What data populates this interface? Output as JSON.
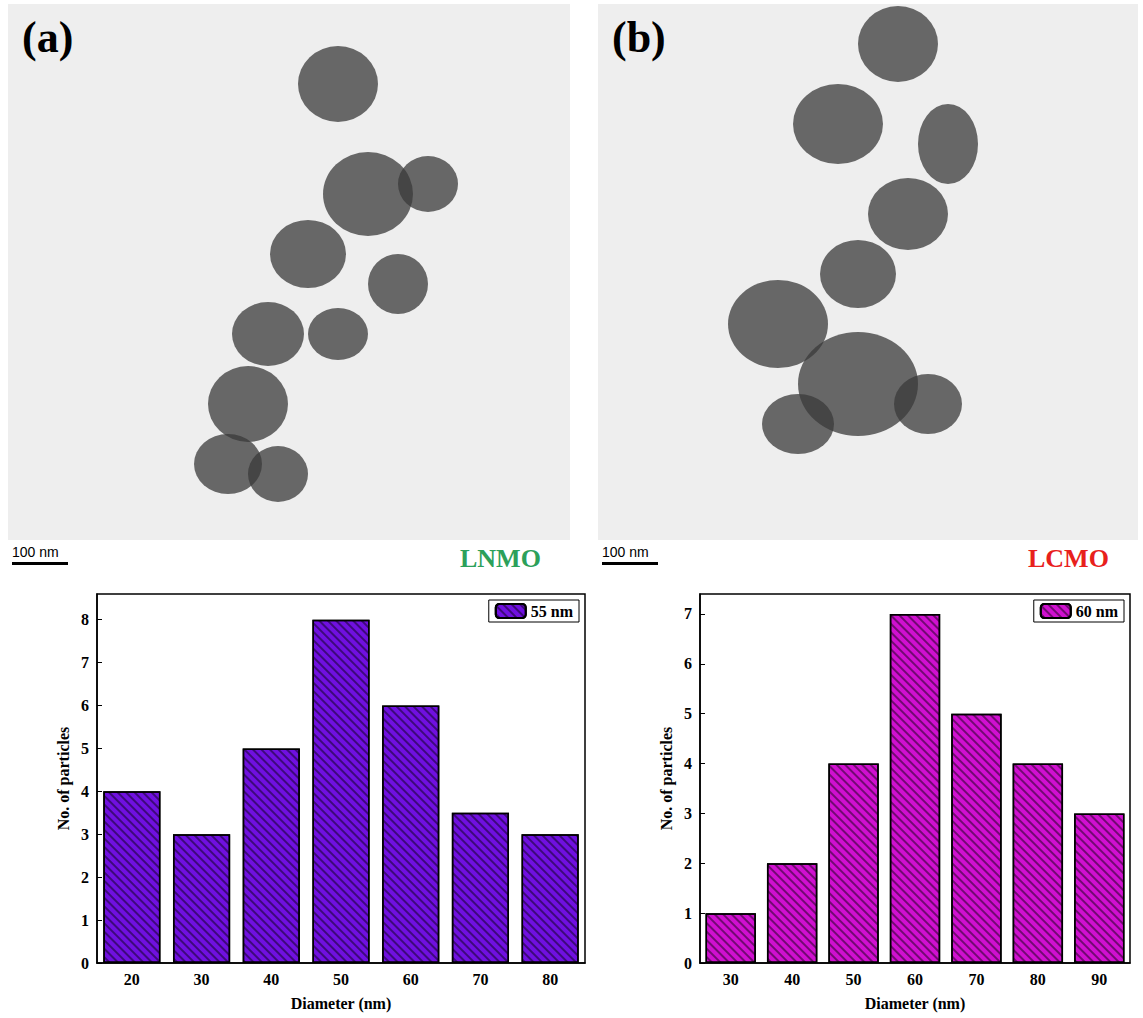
{
  "panels": [
    {
      "letter": "(a)",
      "label": "LNMO",
      "label_color": "#2ca05a",
      "scale_bar": "100 nm"
    },
    {
      "letter": "(b)",
      "label": "LCMO",
      "label_color": "#e8201c",
      "scale_bar": "100 nm"
    }
  ],
  "chart_data": [
    {
      "type": "bar",
      "x_label": "Diameter (nm)",
      "y_label": "No. of particles",
      "categories": [
        "20",
        "30",
        "40",
        "50",
        "60",
        "70",
        "80"
      ],
      "series": [
        {
          "name": "55 nm",
          "color": "#7010e0",
          "values": [
            4,
            3,
            5,
            8,
            6,
            3.5,
            3
          ]
        }
      ],
      "ylim": [
        0,
        8.6
      ],
      "yticks": [
        0,
        1,
        2,
        3,
        4,
        5,
        6,
        7,
        8
      ],
      "legend": "top-right",
      "grid": false
    },
    {
      "type": "bar",
      "x_label": "Diameter (nm)",
      "y_label": "No. of particles",
      "categories": [
        "30",
        "40",
        "50",
        "60",
        "70",
        "80",
        "90"
      ],
      "series": [
        {
          "name": "60 nm",
          "color": "#d010d0",
          "values": [
            1,
            2,
            4,
            7,
            5,
            4,
            3
          ]
        }
      ],
      "ylim": [
        0,
        7.4
      ],
      "yticks": [
        0,
        1,
        2,
        3,
        4,
        5,
        6,
        7
      ],
      "legend": "top-right",
      "grid": false
    }
  ]
}
